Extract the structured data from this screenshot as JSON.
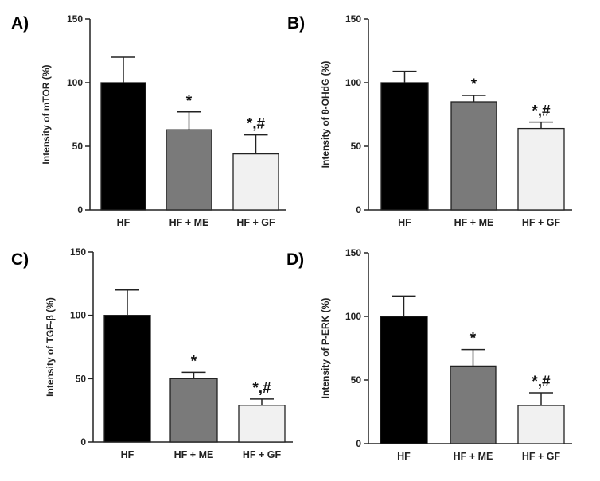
{
  "chart_data": [
    {
      "type": "bar",
      "panel": "A)",
      "categories": [
        "HF",
        "HF + ME",
        "HF + GF"
      ],
      "values": [
        100,
        63,
        44
      ],
      "errors": [
        20,
        14,
        15
      ],
      "annotations": [
        "",
        "*",
        "*,#"
      ],
      "ylabel": "Intensity of mTOR (%)",
      "ylim": [
        0,
        150
      ],
      "yticks": [
        "0",
        "50",
        "100",
        "150"
      ],
      "colors": [
        "#000000",
        "#7a7a7a",
        "#f1f1f1"
      ]
    },
    {
      "type": "bar",
      "panel": "B)",
      "categories": [
        "HF",
        "HF + ME",
        "HF + GF"
      ],
      "values": [
        100,
        85,
        64
      ],
      "errors": [
        9,
        5,
        5
      ],
      "annotations": [
        "",
        "*",
        "*,#"
      ],
      "ylabel": "Intensity of 8-OHdG (%)",
      "ylim": [
        0,
        150
      ],
      "yticks": [
        "0",
        "50",
        "100",
        "150"
      ],
      "colors": [
        "#000000",
        "#7a7a7a",
        "#f1f1f1"
      ]
    },
    {
      "type": "bar",
      "panel": "C)",
      "categories": [
        "HF",
        "HF + ME",
        "HF + GF"
      ],
      "values": [
        100,
        50,
        29
      ],
      "errors": [
        20,
        5,
        5
      ],
      "annotations": [
        "",
        "*",
        "*,#"
      ],
      "ylabel": "Intensity of TGF-β (%)",
      "ylim": [
        0,
        150
      ],
      "yticks": [
        "0",
        "50",
        "100",
        "150"
      ],
      "colors": [
        "#000000",
        "#7a7a7a",
        "#f1f1f1"
      ]
    },
    {
      "type": "bar",
      "panel": "D)",
      "categories": [
        "HF",
        "HF + ME",
        "HF + GF"
      ],
      "values": [
        100,
        61,
        30
      ],
      "errors": [
        16,
        13,
        10
      ],
      "annotations": [
        "",
        "*",
        "*,#"
      ],
      "ylabel": "Intensity of  P-ERK (%)",
      "ylim": [
        0,
        150
      ],
      "yticks": [
        "0",
        "50",
        "100",
        "150"
      ],
      "colors": [
        "#000000",
        "#7a7a7a",
        "#f1f1f1"
      ]
    }
  ]
}
